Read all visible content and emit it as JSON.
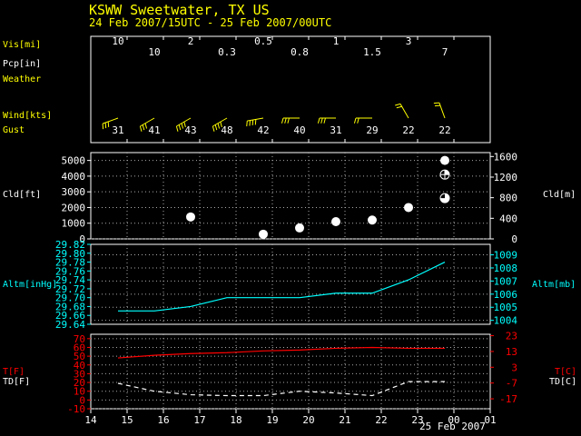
{
  "header": {
    "station": "KSWW  Sweetwater, TX US",
    "period": "24 Feb 2007/15UTC - 25 Feb 2007/00UTC"
  },
  "colors": {
    "background": "#000000",
    "frame": "#ffffff",
    "grid": "#aaaaaa",
    "yellow": "#ffff00",
    "white": "#ffffff",
    "cyan": "#00ffff",
    "red": "#ff0000"
  },
  "labels": {
    "vis": "Vis[mi]",
    "pcp": "Pcp[in]",
    "weather": "Weather",
    "wind": "Wind[kts]",
    "gust": "Gust",
    "cld_ft": "Cld[ft]",
    "cld_m": "Cld[m]",
    "altm_inhg": "Altm[inHg]",
    "altm_mb": "Altm[mb]",
    "temp_f": "T[F]",
    "dew_f": "TD[F]",
    "temp_c": "T[C]",
    "dew_c": "TD[C]",
    "x_date": "25 Feb 2007"
  },
  "chart_data": [
    {
      "type": "table",
      "name": "surface observations",
      "x": [
        14.75,
        15.75,
        16.75,
        17.75,
        18.75,
        19.75,
        20.75,
        21.75,
        22.75,
        23.75
      ],
      "visibility_row1": [
        {
          "x": 14.75,
          "label": "10"
        },
        {
          "x": 16.75,
          "label": "2"
        },
        {
          "x": 18.75,
          "label": "0.5"
        },
        {
          "x": 20.75,
          "label": "1"
        },
        {
          "x": 22.75,
          "label": "3"
        }
      ],
      "visibility_row2": [
        {
          "x": 15.75,
          "label": "10"
        },
        {
          "x": 17.75,
          "label": "0.3"
        },
        {
          "x": 19.75,
          "label": "0.8"
        },
        {
          "x": 21.75,
          "label": "1.5"
        },
        {
          "x": 23.75,
          "label": "7"
        }
      ],
      "wind_direction_deg": [
        250,
        240,
        240,
        240,
        260,
        270,
        270,
        270,
        330,
        340
      ],
      "wind_gust_kts": [
        "31",
        "41",
        "43",
        "48",
        "42",
        "40",
        "31",
        "29",
        "22",
        "22"
      ]
    },
    {
      "type": "scatter",
      "name": "cloud base",
      "ylim_ft": [
        0,
        5500
      ],
      "ylim_m": [
        0,
        1676
      ],
      "yticks_ft": [
        "0",
        "1000",
        "2000",
        "3000",
        "4000",
        "5000"
      ],
      "yticks_m": [
        "0",
        "400",
        "800",
        "1200",
        "1600"
      ],
      "points": [
        {
          "x": 16.75,
          "y": 1400,
          "cover": "full"
        },
        {
          "x": 18.75,
          "y": 300,
          "cover": "full"
        },
        {
          "x": 19.75,
          "y": 700,
          "cover": "full"
        },
        {
          "x": 20.75,
          "y": 1100,
          "cover": "full"
        },
        {
          "x": 21.75,
          "y": 1200,
          "cover": "full"
        },
        {
          "x": 22.75,
          "y": 2000,
          "cover": "full"
        },
        {
          "x": 23.75,
          "y": 5000,
          "cover": "full"
        },
        {
          "x": 23.75,
          "y": 4100,
          "cover": "scattered"
        },
        {
          "x": 23.75,
          "y": 2600,
          "cover": "broken"
        }
      ]
    },
    {
      "type": "line",
      "name": "altimeter",
      "ylim": [
        29.64,
        29.82
      ],
      "ylim_mb": [
        1003.7,
        1009.8
      ],
      "yticks": [
        "29.82",
        "29.80",
        "29.78",
        "29.76",
        "29.74",
        "29.72",
        "29.70",
        "29.68",
        "29.66",
        "29.64"
      ],
      "yticks_mb": [
        "1009",
        "1008",
        "1007",
        "1006",
        "1005",
        "1004"
      ],
      "x": [
        14.75,
        15.75,
        16.75,
        17.75,
        18.75,
        19.75,
        20.75,
        21.75,
        22.75,
        23.75
      ],
      "y": [
        29.67,
        29.67,
        29.68,
        29.7,
        29.7,
        29.7,
        29.71,
        29.71,
        29.74,
        29.78
      ]
    },
    {
      "type": "line",
      "name": "temperature",
      "ylim_f": [
        -10,
        75
      ],
      "ylim_c": [
        -23.3,
        23.9
      ],
      "yticks_f": [
        "70",
        "60",
        "50",
        "40",
        "30",
        "20",
        "10",
        "0",
        "-10"
      ],
      "yticks_c": [
        "23",
        "13",
        "3",
        "-7",
        "-17"
      ],
      "x": [
        14.75,
        15.75,
        16.75,
        17.75,
        18.75,
        19.75,
        20.75,
        21.75,
        22.75,
        23.75
      ],
      "series": [
        {
          "key": "temp",
          "values": [
            48,
            51,
            53,
            54,
            56,
            57,
            59,
            60,
            59,
            59
          ]
        },
        {
          "key": "dewpoint",
          "values": [
            19,
            10,
            6,
            5,
            5,
            10,
            8,
            5,
            21,
            21
          ]
        }
      ]
    }
  ],
  "x_axis": {
    "min": 14,
    "max": 25,
    "ticks": [
      "14",
      "15",
      "16",
      "17",
      "18",
      "19",
      "20",
      "21",
      "22",
      "23",
      "00",
      "01"
    ]
  }
}
